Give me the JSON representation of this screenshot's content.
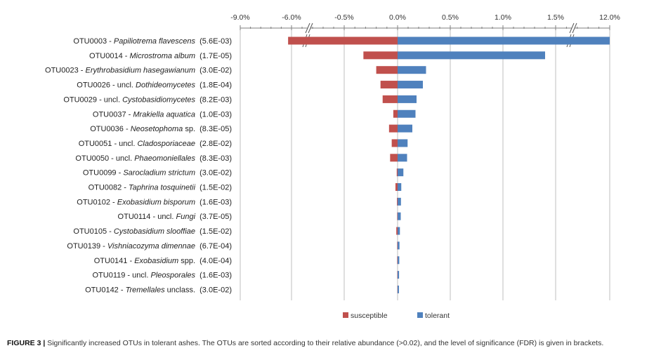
{
  "chart_data": {
    "type": "bar",
    "orientation": "horizontal",
    "tick_labels": [
      "-9.0%",
      "-6.0%",
      "-0.5%",
      "0.0%",
      "0.5%",
      "1.0%",
      "1.5%",
      "12.0%"
    ],
    "axis_breaks": "broken scale on both sides",
    "grid": true,
    "legend_position": "bottom",
    "colors": {
      "susceptible": "#c0504d",
      "tolerant": "#4f81bd",
      "grid": "#bfbfbf",
      "axis": "#7f7f7f"
    },
    "series": [
      {
        "name": "susceptible",
        "values": [
          -6.2,
          -0.32,
          -0.2,
          -0.16,
          -0.14,
          -0.04,
          -0.08,
          -0.055,
          -0.07,
          -0.008,
          -0.02,
          -0.006,
          -0.004,
          -0.012,
          -0.004,
          -0.004,
          -0.003,
          -0.002
        ]
      },
      {
        "name": "tolerant",
        "values": [
          12.3,
          1.4,
          0.27,
          0.24,
          0.18,
          0.17,
          0.14,
          0.095,
          0.09,
          0.055,
          0.035,
          0.032,
          0.03,
          0.022,
          0.018,
          0.016,
          0.014,
          0.013
        ]
      }
    ],
    "categories": [
      {
        "prefix": "OTU0003 - ",
        "italic": "Papiliotrema flavescens",
        "suffix": "",
        "fdr": "(5.6E-03)"
      },
      {
        "prefix": "OTU0014 - ",
        "italic": "Microstroma album",
        "suffix": "",
        "fdr": "(1.7E-05)"
      },
      {
        "prefix": "OTU0023 - ",
        "italic": "Erythrobasidium hasegawianum",
        "suffix": "",
        "fdr": "(3.0E-02)"
      },
      {
        "prefix": "OTU0026 - uncl. ",
        "italic": "Dothideomycetes",
        "suffix": "",
        "fdr": "(1.8E-04)"
      },
      {
        "prefix": "OTU0029 - uncl. ",
        "italic": "Cystobasidiomycetes",
        "suffix": "",
        "fdr": "(8.2E-03)"
      },
      {
        "prefix": "OTU0037 - ",
        "italic": "Mrakiella aquatica",
        "suffix": "",
        "fdr": "(1.0E-03)"
      },
      {
        "prefix": "OTU0036 - ",
        "italic": "Neosetophoma",
        "suffix": " sp.",
        "fdr": "(8.3E-05)"
      },
      {
        "prefix": "OTU0051 - uncl. ",
        "italic": "Cladosporiaceae",
        "suffix": "",
        "fdr": "(2.8E-02)"
      },
      {
        "prefix": "OTU0050 - uncl. ",
        "italic": "Phaeomoniellales",
        "suffix": "",
        "fdr": "(8.3E-03)"
      },
      {
        "prefix": "OTU0099 - ",
        "italic": "Sarocladium strictum",
        "suffix": "",
        "fdr": "(3.0E-02)"
      },
      {
        "prefix": "OTU0082 - ",
        "italic": "Taphrina tosquinetii",
        "suffix": "",
        "fdr": "(1.5E-02)"
      },
      {
        "prefix": "OTU0102 - ",
        "italic": "Exobasidium bisporum",
        "suffix": "",
        "fdr": "(1.6E-03)"
      },
      {
        "prefix": "OTU0114 - uncl. ",
        "italic": "Fungi",
        "suffix": "",
        "fdr": "(3.7E-05)"
      },
      {
        "prefix": "OTU0105 - ",
        "italic": "Cystobasidium slooffiae",
        "suffix": "",
        "fdr": "(1.5E-02)"
      },
      {
        "prefix": "OTU0139 - ",
        "italic": "Vishniacozyma dimennae",
        "suffix": "",
        "fdr": "(6.7E-04)"
      },
      {
        "prefix": "OTU0141 - ",
        "italic": "Exobasidium",
        "suffix": " spp.",
        "fdr": "(4.0E-04)"
      },
      {
        "prefix": "OTU0119 - uncl. ",
        "italic": "Pleosporales",
        "suffix": "",
        "fdr": "(1.6E-03)"
      },
      {
        "prefix": "OTU0142 - ",
        "italic": "Tremellales",
        "suffix": " unclass.",
        "fdr": "(3.0E-02)"
      }
    ]
  },
  "caption": {
    "label": "FIGURE 3 |",
    "text": " Significantly increased OTUs in tolerant ashes. The OTUs are sorted according to their relative abundance (>0.02), and the level of significance (FDR) is given in brackets."
  }
}
